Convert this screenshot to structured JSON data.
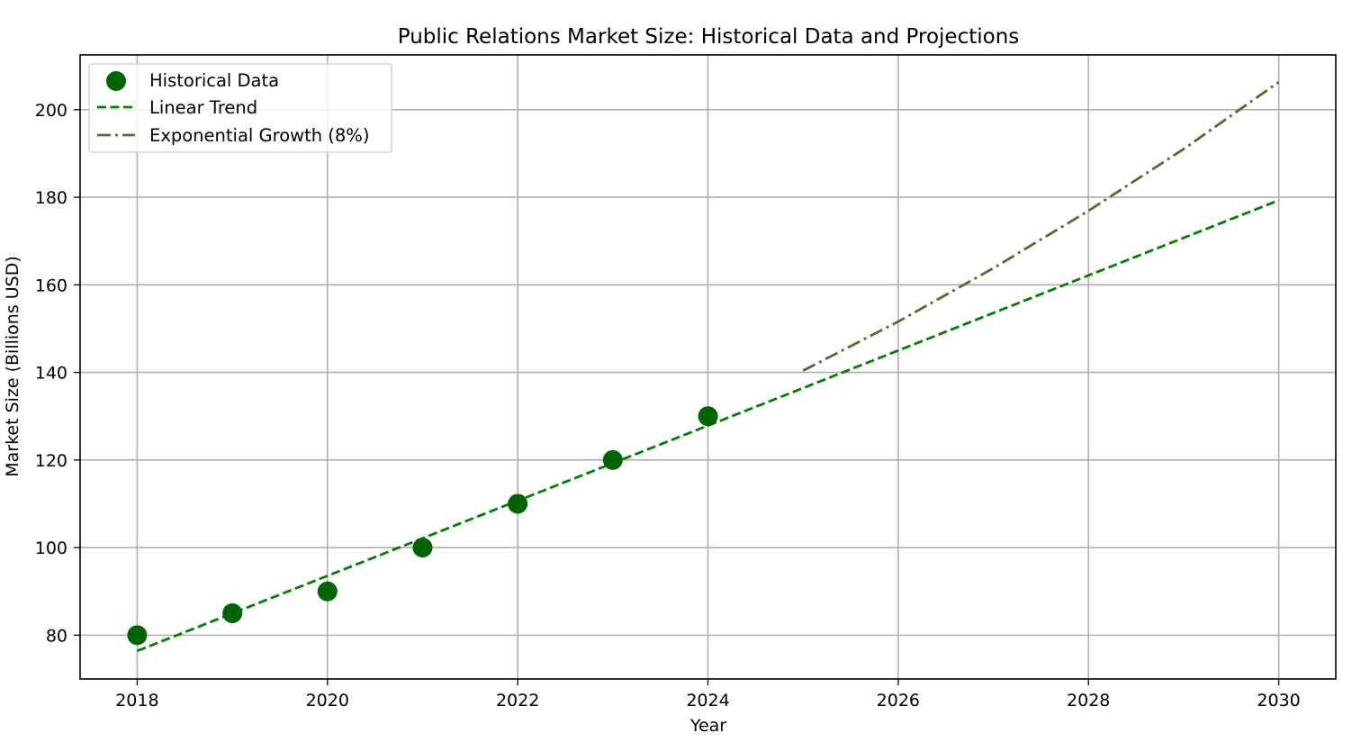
{
  "colors": {
    "historical": "#006400",
    "linear": "#008000",
    "exponential": "#556B2F",
    "grid": "#b0b0b0",
    "axis": "#000000"
  },
  "chart_data": {
    "type": "line",
    "title": "Public Relations Market Size: Historical Data and Projections",
    "xlabel": "Year",
    "ylabel": "Market Size (Billions USD)",
    "xlim": [
      2017.4,
      2030.6
    ],
    "ylim": [
      70,
      212.5
    ],
    "x_ticks": [
      2018,
      2020,
      2022,
      2024,
      2026,
      2028,
      2030
    ],
    "y_ticks": [
      80,
      100,
      120,
      140,
      160,
      180,
      200
    ],
    "x_tick_labels": [
      "2018",
      "2020",
      "2022",
      "2024",
      "2026",
      "2028",
      "2030"
    ],
    "y_tick_labels": [
      "80",
      "100",
      "120",
      "140",
      "160",
      "180",
      "200"
    ],
    "grid": true,
    "legend_position": "top-left",
    "series": [
      {
        "name": "Historical Data",
        "kind": "scatter",
        "x": [
          2018,
          2019,
          2020,
          2021,
          2022,
          2023,
          2024
        ],
        "y": [
          80,
          85,
          90,
          100,
          110,
          120,
          130
        ]
      },
      {
        "name": "Linear Trend",
        "kind": "line",
        "style": "dashed",
        "x": [
          2018,
          2030
        ],
        "y": [
          76.4,
          179.3
        ]
      },
      {
        "name": "Exponential Growth (8%)",
        "kind": "line",
        "style": "dashdot",
        "x": [
          2025,
          2026,
          2027,
          2028,
          2029,
          2030
        ],
        "y": [
          140.4,
          151.6,
          163.8,
          176.9,
          191.0,
          206.3
        ]
      }
    ]
  }
}
